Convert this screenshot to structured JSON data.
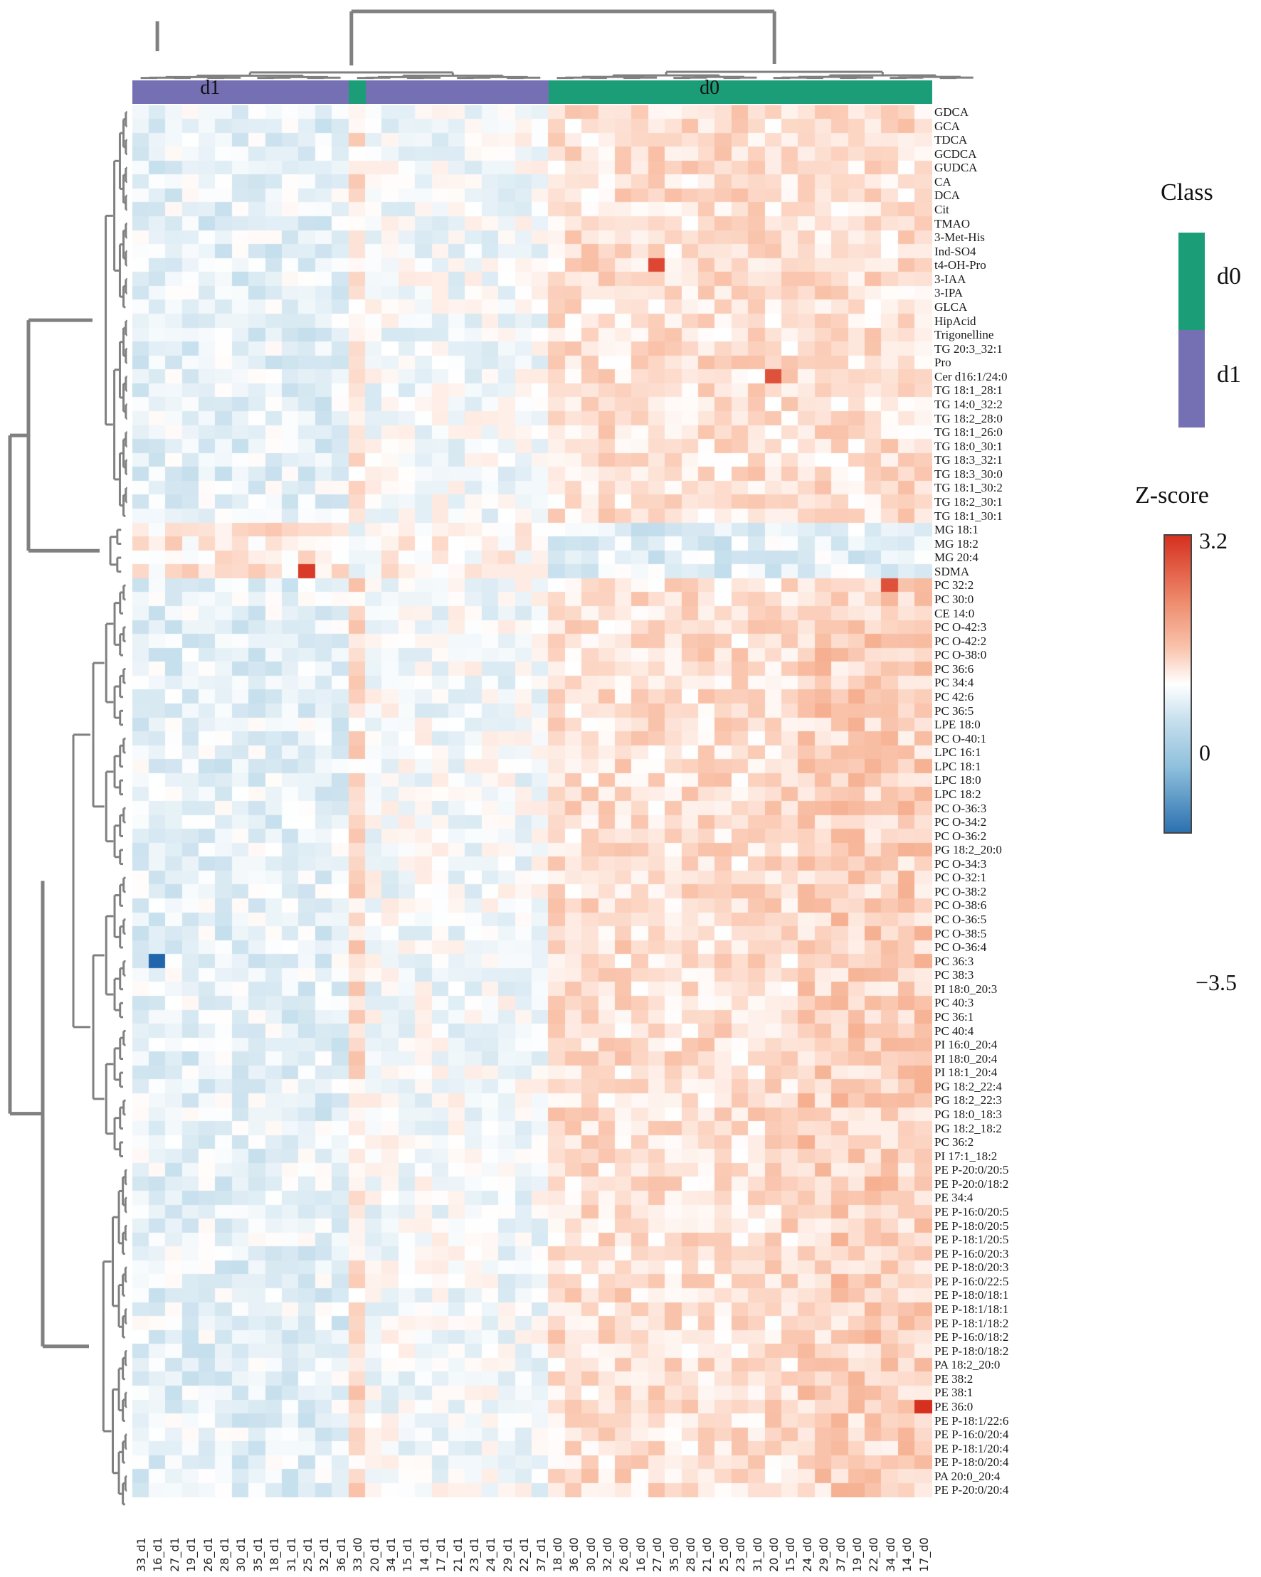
{
  "chart_data": {
    "type": "heatmap",
    "title": "",
    "xlabel": "",
    "ylabel": "",
    "value_label": "Z-score",
    "value_range": [
      -3.5,
      3.2
    ],
    "colorbar": {
      "title": "Z-score",
      "ticks": [
        {
          "value": 3.2,
          "label": "3.2"
        },
        {
          "value": 0,
          "label": "0"
        },
        {
          "value": -3.5,
          "label": "−3.5"
        }
      ],
      "colors": {
        "low": "#2166ac",
        "mid": "#ffffff",
        "high": "#d6301f"
      }
    },
    "class_legend": {
      "title": "Class",
      "entries": [
        {
          "label": "d0",
          "color": "#1b9e77"
        },
        {
          "label": "d1",
          "color": "#7570b3"
        }
      ]
    },
    "class_bar_labels": [
      {
        "label": "d1",
        "center_col": 4.5
      },
      {
        "label": "d0",
        "center_col": 34.5
      }
    ],
    "columns": [
      "33_d1",
      "16_d1",
      "27_d1",
      "19_d1",
      "26_d1",
      "28_d1",
      "30_d1",
      "35_d1",
      "18_d1",
      "31_d1",
      "25_d1",
      "32_d1",
      "36_d1",
      "33_d0",
      "20_d1",
      "34_d1",
      "15_d1",
      "14_d1",
      "17_d1",
      "21_d1",
      "23_d1",
      "24_d1",
      "29_d1",
      "22_d1",
      "37_d1",
      "18_d0",
      "36_d0",
      "30_d0",
      "32_d0",
      "26_d0",
      "16_d0",
      "27_d0",
      "35_d0",
      "28_d0",
      "21_d0",
      "25_d0",
      "23_d0",
      "31_d0",
      "20_d0",
      "15_d0",
      "24_d0",
      "29_d0",
      "37_d0",
      "19_d0",
      "22_d0",
      "34_d0",
      "14_d0",
      "17_d0"
    ],
    "column_classes": [
      "d1",
      "d1",
      "d1",
      "d1",
      "d1",
      "d1",
      "d1",
      "d1",
      "d1",
      "d1",
      "d1",
      "d1",
      "d1",
      "d0",
      "d1",
      "d1",
      "d1",
      "d1",
      "d1",
      "d1",
      "d1",
      "d1",
      "d1",
      "d1",
      "d1",
      "d0",
      "d0",
      "d0",
      "d0",
      "d0",
      "d0",
      "d0",
      "d0",
      "d0",
      "d0",
      "d0",
      "d0",
      "d0",
      "d0",
      "d0",
      "d0",
      "d0",
      "d0",
      "d0",
      "d0",
      "d0",
      "d0",
      "d0"
    ],
    "rows": [
      "GDCA",
      "GCA",
      "TDCA",
      "GCDCA",
      "GUDCA",
      "CA",
      "DCA",
      "Cit",
      "TMAO",
      "3-Met-His",
      "Ind-SO4",
      "t4-OH-Pro",
      "3-IAA",
      "3-IPA",
      "GLCA",
      "HipAcid",
      "Trigonelline",
      "TG 20:3_32:1",
      "Pro",
      "Cer d16:1/24:0",
      "TG 18:1_28:1",
      "TG 14:0_32:2",
      "TG 18:2_28:0",
      "TG 18:1_26:0",
      "TG 18:0_30:1",
      "TG 18:3_32:1",
      "TG 18:3_30:0",
      "TG 18:1_30:2",
      "TG 18:2_30:1",
      "TG 18:1_30:1",
      "MG 18:1",
      "MG 18:2",
      "MG 20:4",
      "SDMA",
      "PC 32:2",
      "PC 30:0",
      "CE 14:0",
      "PC O-42:3",
      "PC O-42:2",
      "PC O-38:0",
      "PC 36:6",
      "PC 34:4",
      "PC 42:6",
      "PC 36:5",
      "LPE 18:0",
      "PC O-40:1",
      "LPC 16:1",
      "LPC 18:1",
      "LPC 18:0",
      "LPC 18:2",
      "PC O-36:3",
      "PC O-34:2",
      "PC O-36:2",
      "PG 18:2_20:0",
      "PC O-34:3",
      "PC O-32:1",
      "PC O-38:2",
      "PC O-38:6",
      "PC O-36:5",
      "PC O-38:5",
      "PC O-36:4",
      "PC 36:3",
      "PC 38:3",
      "PI 18:0_20:3",
      "PC 40:3",
      "PC 36:1",
      "PC 40:4",
      "PI 16:0_20:4",
      "PI 18:0_20:4",
      "PI 18:1_20:4",
      "PG 18:2_22:4",
      "PG 18:2_22:3",
      "PG 18:0_18:3",
      "PG 18:2_18:2",
      "PC 36:2",
      "PI 17:1_18:2",
      "PE P-20:0/20:5",
      "PE P-20:0/18:2",
      "PE 34:4",
      "PE P-16:0/20:5",
      "PE P-18:0/20:5",
      "PE P-18:1/20:5",
      "PE P-16:0/20:3",
      "PE P-18:0/20:3",
      "PE P-16:0/22:5",
      "PE P-18:0/18:1",
      "PE P-18:1/18:1",
      "PE P-18:1/18:2",
      "PE P-16:0/18:2",
      "PE P-18:0/18:2",
      "PA 18:2_20:0",
      "PE 38:2",
      "PE 38:1",
      "PE 36:0",
      "PE P-18:1/22:6",
      "PE P-16:0/20:4",
      "PE P-18:1/20:4",
      "PE P-18:0/20:4",
      "PA 20:0_20:4",
      "PE P-20:0/20:4"
    ],
    "row_groups_inverted": [
      "MG 18:1",
      "MG 18:2",
      "MG 20:4",
      "SDMA"
    ],
    "notable_cells": [
      {
        "row": "t4-OH-Pro",
        "col": "27_d0",
        "value": 3.0
      },
      {
        "row": "Cer d16:1/24:0",
        "col": "20_d0",
        "value": 2.9
      },
      {
        "row": "SDMA",
        "col": "25_d1",
        "value": 3.1
      },
      {
        "row": "PC 32:2",
        "col": "34_d0",
        "value": 2.9
      },
      {
        "row": "PC 36:3",
        "col": "16_d1",
        "value": -3.5
      },
      {
        "row": "PE 36:0",
        "col": "17_d0",
        "value": 3.2
      }
    ],
    "dendrogram": {
      "rows": true,
      "columns": true,
      "color": "#808080"
    },
    "grid": false,
    "legend_position": "right"
  }
}
